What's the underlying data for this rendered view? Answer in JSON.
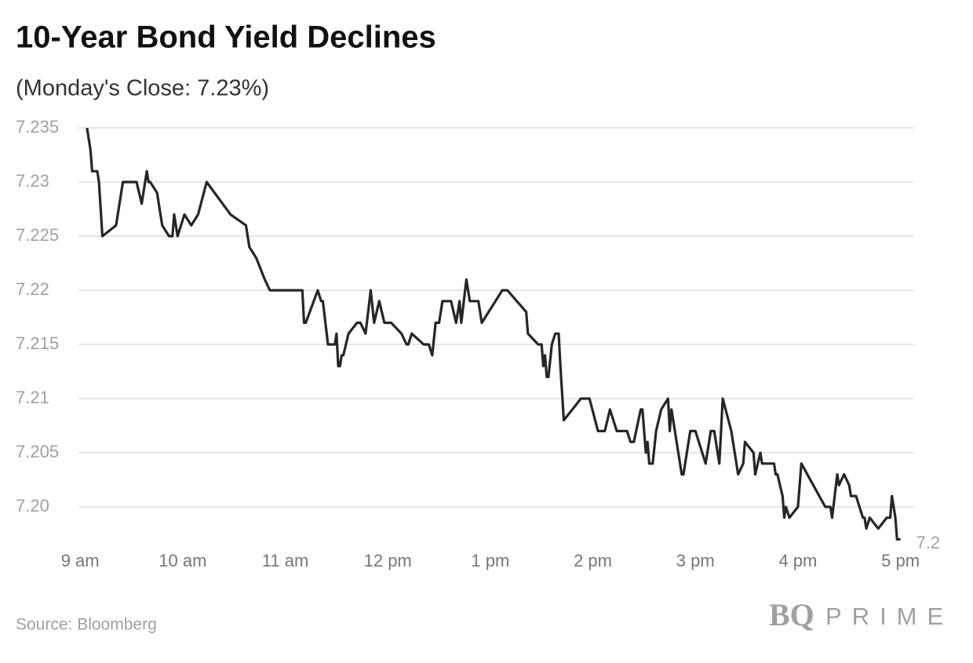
{
  "chart_data": {
    "type": "line",
    "title": "10-Year Bond Yield Declines",
    "subtitle": "(Monday's Close: 7.23%)",
    "source": "Source: Bloomberg",
    "brand": {
      "mark": "BQ",
      "name": "PRIME"
    },
    "xlim": [
      539,
      1028
    ],
    "xticks": [
      {
        "value": 540,
        "label": "9 am"
      },
      {
        "value": 600,
        "label": "10 am"
      },
      {
        "value": 660,
        "label": "11 am"
      },
      {
        "value": 720,
        "label": "12 pm"
      },
      {
        "value": 780,
        "label": "1 pm"
      },
      {
        "value": 840,
        "label": "2 pm"
      },
      {
        "value": 900,
        "label": "3 pm"
      },
      {
        "value": 960,
        "label": "4 pm"
      },
      {
        "value": 1020,
        "label": "5 pm"
      }
    ],
    "ylim": [
      7.197,
      7.235
    ],
    "yticks": [
      7.235,
      7.23,
      7.225,
      7.22,
      7.215,
      7.21,
      7.205,
      {
        "value": 7.2,
        "label": "7.20"
      }
    ],
    "grid": true,
    "series": [
      {
        "color": "#262626",
        "x": [
          544,
          546,
          547,
          550,
          551,
          553,
          561,
          562,
          565,
          573,
          576,
          579,
          580,
          581,
          585,
          588,
          592,
          594,
          595,
          597,
          601,
          605,
          609,
          614,
          628,
          637,
          639,
          643,
          648,
          651,
          670,
          671,
          672,
          679,
          681,
          682,
          685,
          689,
          690,
          691,
          692,
          693,
          694,
          697,
          702,
          704,
          707,
          710,
          712,
          715,
          718,
          722,
          728,
          731,
          732,
          734,
          741,
          744,
          746,
          748,
          750,
          752,
          757,
          760,
          762,
          763,
          766,
          768,
          773,
          775,
          787,
          790,
          801,
          802,
          808,
          810,
          811,
          812,
          813,
          814,
          816,
          818,
          820,
          821,
          823,
          833,
          838,
          843,
          847,
          850,
          854,
          860,
          862,
          864,
          868,
          869,
          871,
          872,
          873,
          875,
          877,
          880,
          884,
          885,
          886,
          888,
          892,
          893,
          894,
          897,
          900,
          906,
          909,
          911,
          914,
          916,
          921,
          925,
          928,
          929,
          934,
          935,
          938,
          939,
          946,
          947,
          948,
          951,
          952,
          953,
          955,
          960,
          962,
          976,
          979,
          980,
          983,
          984,
          987,
          990,
          991,
          994,
          998,
          999,
          1000,
          1002,
          1007,
          1012,
          1014,
          1015,
          1017,
          1018,
          1020
        ],
        "values": [
          7.235,
          7.233,
          7.231,
          7.231,
          7.23,
          7.225,
          7.226,
          7.227,
          7.23,
          7.23,
          7.228,
          7.231,
          7.23,
          7.23,
          7.229,
          7.226,
          7.225,
          7.225,
          7.227,
          7.225,
          7.227,
          7.226,
          7.227,
          7.23,
          7.227,
          7.226,
          7.224,
          7.223,
          7.221,
          7.22,
          7.22,
          7.217,
          7.217,
          7.22,
          7.219,
          7.219,
          7.215,
          7.215,
          7.216,
          7.213,
          7.213,
          7.214,
          7.214,
          7.216,
          7.217,
          7.217,
          7.216,
          7.22,
          7.217,
          7.219,
          7.217,
          7.217,
          7.216,
          7.215,
          7.215,
          7.216,
          7.215,
          7.215,
          7.214,
          7.217,
          7.217,
          7.219,
          7.219,
          7.217,
          7.219,
          7.217,
          7.221,
          7.219,
          7.219,
          7.217,
          7.22,
          7.22,
          7.218,
          7.216,
          7.215,
          7.215,
          7.213,
          7.214,
          7.212,
          7.212,
          7.215,
          7.216,
          7.216,
          7.213,
          7.208,
          7.21,
          7.21,
          7.207,
          7.207,
          7.209,
          7.207,
          7.207,
          7.206,
          7.206,
          7.209,
          7.209,
          7.205,
          7.206,
          7.204,
          7.204,
          7.207,
          7.209,
          7.21,
          7.207,
          7.209,
          7.207,
          7.203,
          7.203,
          7.204,
          7.207,
          7.207,
          7.204,
          7.207,
          7.207,
          7.204,
          7.21,
          7.207,
          7.203,
          7.204,
          7.206,
          7.205,
          7.203,
          7.205,
          7.204,
          7.204,
          7.203,
          7.203,
          7.201,
          7.199,
          7.2,
          7.199,
          7.2,
          7.204,
          7.2,
          7.2,
          7.199,
          7.203,
          7.202,
          7.203,
          7.202,
          7.201,
          7.201,
          7.199,
          7.199,
          7.198,
          7.199,
          7.198,
          7.199,
          7.199,
          7.201,
          7.199,
          7.197,
          7.197
        ],
        "value_labels": [
          null,
          null,
          null,
          null,
          null,
          null,
          null,
          null,
          null,
          null,
          null,
          null,
          null,
          null,
          null,
          null,
          null,
          null,
          null,
          null,
          null,
          null,
          null,
          null,
          null,
          null,
          null,
          null,
          null,
          null,
          null,
          null,
          null,
          null,
          null,
          null,
          null,
          null,
          null,
          null,
          null,
          null,
          null,
          null,
          null,
          null,
          null,
          null,
          null,
          null,
          null,
          null,
          null,
          null,
          null,
          null,
          null,
          null,
          null,
          null,
          null,
          null,
          null,
          null,
          null,
          null,
          null,
          null,
          null,
          null,
          null,
          null,
          null,
          null,
          null,
          null,
          null,
          null,
          null,
          null,
          null,
          null,
          null,
          null,
          null,
          null,
          null,
          null,
          null,
          null,
          null,
          null,
          null,
          null,
          null,
          null,
          null,
          null,
          null,
          null,
          null,
          null,
          null,
          null,
          null,
          null,
          null,
          null,
          null,
          null,
          null,
          null,
          null,
          null,
          null,
          null,
          null,
          null,
          null,
          null,
          null,
          null,
          null,
          null,
          null,
          null,
          null,
          null,
          null,
          null,
          null,
          null,
          null,
          null,
          null,
          null,
          null,
          null,
          null,
          null,
          null,
          null,
          null,
          null,
          null,
          null,
          null,
          null,
          null,
          null,
          null,
          null,
          "7.2"
        ]
      }
    ]
  }
}
